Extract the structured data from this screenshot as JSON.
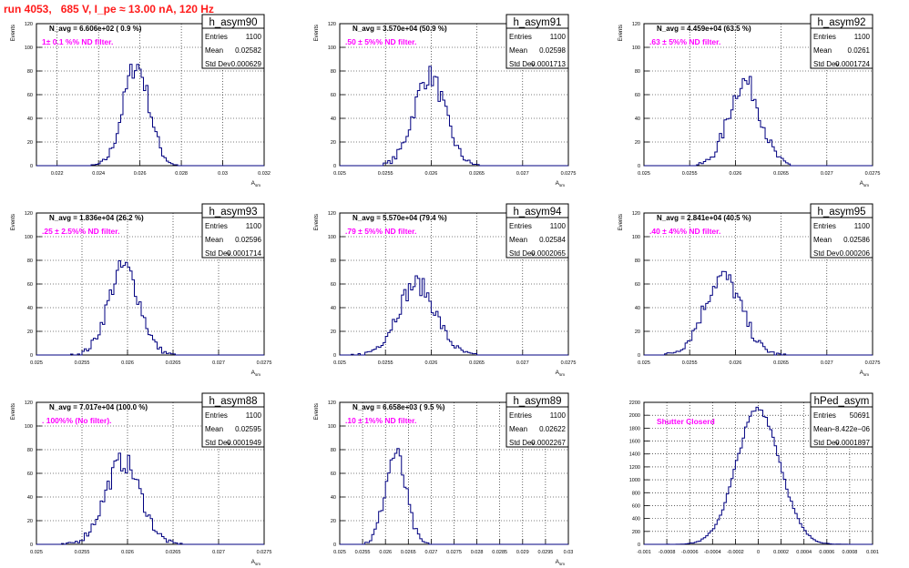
{
  "run_title": "run 4053,   685 V, I_pe ≈ 13.00 nA, 120 Hz",
  "colors": {
    "hist": "#000080",
    "stats": "#000000",
    "grid": "#000000",
    "note": "#ff00ff",
    "title": "#ff1a1a"
  },
  "chart_data": [
    {
      "type": "bar",
      "name": "h_asym90",
      "navg": "N_avg = 6.606e+02 ( 0.9 %)",
      "note": "1± 0.1 %% ND filter.",
      "stats": {
        "Entries": "1100",
        "Mean": "0.02582",
        "Std Dev": "0.000629"
      },
      "xlabel": "A_sm",
      "ylabel": "Events",
      "xlim": [
        0.021,
        0.032
      ],
      "ylim": [
        0,
        120
      ],
      "xticks": [
        "0.022",
        "0.024",
        "0.026",
        "0.028",
        "0.03",
        "0.032"
      ],
      "xtick_values": [
        0.022,
        0.024,
        0.026,
        0.028,
        0.03,
        0.032
      ],
      "yticks": [
        0,
        20,
        40,
        60,
        80,
        100,
        120
      ],
      "grid": true,
      "shape": {
        "mean": 0.02582,
        "sd": 0.000629,
        "peak": 85
      }
    },
    {
      "type": "bar",
      "name": "h_asym91",
      "navg": "N_avg = 3.570e+04 (50.9 %)",
      "note": ".50 ± 5%% ND filter.",
      "stats": {
        "Entries": "1100",
        "Mean": "0.02598",
        "Std Dev": "0.0001713"
      },
      "xlabel": "A_sm",
      "ylabel": "Events",
      "xlim": [
        0.025,
        0.0275
      ],
      "ylim": [
        0,
        120
      ],
      "xticks": [
        "0.025",
        "0.0255",
        "0.026",
        "0.0265",
        "0.027",
        "0.0275"
      ],
      "xtick_values": [
        0.025,
        0.0255,
        0.026,
        0.0265,
        0.027,
        0.0275
      ],
      "yticks": [
        0,
        20,
        40,
        60,
        80,
        100,
        120
      ],
      "grid": true,
      "shape": {
        "mean": 0.02598,
        "sd": 0.0001713,
        "peak": 76
      }
    },
    {
      "type": "bar",
      "name": "h_asym92",
      "navg": "N_avg = 4.459e+04 (63.5 %)",
      "note": ".63 ± 5%% ND filter.",
      "stats": {
        "Entries": "1100",
        "Mean": "0.0261",
        "Std Dev": "0.0001724"
      },
      "xlabel": "A_sm",
      "ylabel": "Events",
      "xlim": [
        0.025,
        0.0275
      ],
      "ylim": [
        0,
        120
      ],
      "xticks": [
        "0.025",
        "0.0255",
        "0.026",
        "0.0265",
        "0.027",
        "0.0275"
      ],
      "xtick_values": [
        0.025,
        0.0255,
        0.026,
        0.0265,
        0.027,
        0.0275
      ],
      "yticks": [
        0,
        20,
        40,
        60,
        80,
        100,
        120
      ],
      "grid": true,
      "shape": {
        "mean": 0.0261,
        "sd": 0.0001724,
        "peak": 71
      }
    },
    {
      "type": "bar",
      "name": "h_asym93",
      "navg": "N_avg = 1.836e+04 (26.2 %)",
      "note": ".25 ± 2.5%% ND filter.",
      "stats": {
        "Entries": "1100",
        "Mean": "0.02596",
        "Std Dev": "0.0001714"
      },
      "xlabel": "A_sm",
      "ylabel": "Events",
      "xlim": [
        0.025,
        0.0275
      ],
      "ylim": [
        0,
        120
      ],
      "xticks": [
        "0.025",
        "0.0255",
        "0.026",
        "0.0265",
        "0.027",
        "0.0275"
      ],
      "xtick_values": [
        0.025,
        0.0255,
        0.026,
        0.0265,
        0.027,
        0.0275
      ],
      "yticks": [
        0,
        20,
        40,
        60,
        80,
        100,
        120
      ],
      "grid": true,
      "shape": {
        "mean": 0.02596,
        "sd": 0.0001714,
        "peak": 74
      }
    },
    {
      "type": "bar",
      "name": "h_asym94",
      "navg": "N_avg = 5.570e+04 (79.4 %)",
      "note": ".79 ± 5%% ND filter.",
      "stats": {
        "Entries": "1100",
        "Mean": "0.02584",
        "Std Dev": "0.0002065"
      },
      "xlabel": "A_sm",
      "ylabel": "Events",
      "xlim": [
        0.025,
        0.0275
      ],
      "ylim": [
        0,
        120
      ],
      "xticks": [
        "0.025",
        "0.0255",
        "0.026",
        "0.0265",
        "0.027",
        "0.0275"
      ],
      "xtick_values": [
        0.025,
        0.0255,
        0.026,
        0.0265,
        0.027,
        0.0275
      ],
      "yticks": [
        0,
        20,
        40,
        60,
        80,
        100,
        120
      ],
      "grid": true,
      "shape": {
        "mean": 0.02584,
        "sd": 0.0002065,
        "peak": 60
      }
    },
    {
      "type": "bar",
      "name": "h_asym95",
      "navg": "N_avg = 2.841e+04 (40.5 %)",
      "note": ".40 ± 4%% ND filter.",
      "stats": {
        "Entries": "1100",
        "Mean": "0.02586",
        "Std Dev": "0.000206"
      },
      "xlabel": "A_sm",
      "ylabel": "Events",
      "xlim": [
        0.025,
        0.0275
      ],
      "ylim": [
        0,
        120
      ],
      "xticks": [
        "0.025",
        "0.0255",
        "0.026",
        "0.0265",
        "0.027",
        "0.0275"
      ],
      "xtick_values": [
        0.025,
        0.0255,
        0.026,
        0.0265,
        0.027,
        0.0275
      ],
      "yticks": [
        0,
        20,
        40,
        60,
        80,
        100,
        120
      ],
      "grid": true,
      "shape": {
        "mean": 0.02586,
        "sd": 0.000206,
        "peak": 66
      }
    },
    {
      "type": "bar",
      "name": "h_asym88",
      "navg": "N_avg = 7.017e+04 (100.0 %)",
      "note": ". 100%% (No filter).",
      "stats": {
        "Entries": "1100",
        "Mean": "0.02595",
        "Std Dev": "0.0001949"
      },
      "xlabel": "A_sm",
      "ylabel": "Events",
      "xlim": [
        0.025,
        0.0275
      ],
      "ylim": [
        0,
        120
      ],
      "xticks": [
        "0.025",
        "0.0255",
        "0.026",
        "0.0265",
        "0.027",
        "0.0275"
      ],
      "xtick_values": [
        0.025,
        0.0255,
        0.026,
        0.0265,
        0.027,
        0.0275
      ],
      "yticks": [
        0,
        20,
        40,
        60,
        80,
        100,
        120
      ],
      "grid": true,
      "shape": {
        "mean": 0.02595,
        "sd": 0.0001949,
        "peak": 70
      }
    },
    {
      "type": "bar",
      "name": "h_asym89",
      "navg": "N_avg = 6.658e+03 ( 9.5 %)",
      "note": ".10 ± 1%% ND filter.",
      "stats": {
        "Entries": "1100",
        "Mean": "0.02622",
        "Std Dev": "0.0002267"
      },
      "xlabel": "A_sm",
      "ylabel": "Events",
      "xlim": [
        0.025,
        0.03
      ],
      "ylim": [
        0,
        120
      ],
      "xticks": [
        "0.025",
        "0.0255",
        "0.026",
        "0.0265",
        "0.027",
        "0.0275",
        "0.028",
        "0.0285",
        "0.029",
        "0.0295",
        "0.03"
      ],
      "xtick_values": [
        0.025,
        0.0255,
        0.026,
        0.0265,
        0.027,
        0.0275,
        0.028,
        0.0285,
        0.029,
        0.0295,
        0.03
      ],
      "yticks": [
        0,
        20,
        40,
        60,
        80,
        100,
        120
      ],
      "grid": true,
      "shape": {
        "mean": 0.02622,
        "sd": 0.0002267,
        "peak": 76
      }
    },
    {
      "type": "bar",
      "name": "hPed_asym",
      "navg": "",
      "note": "Shutter Closerd",
      "stats": {
        "Entries": "50691",
        "Mean": "−8.422e−06",
        "Std Dev": "0.0001897"
      },
      "xlabel": "",
      "ylabel": "",
      "xlim": [
        -0.001,
        0.001
      ],
      "ylim": [
        0,
        2200
      ],
      "xticks": [
        "-0.001",
        "-0.0008",
        "-0.0006",
        "-0.0004",
        "-0.0002",
        "0",
        "0.0002",
        "0.0004",
        "0.0006",
        "0.0008",
        "0.001"
      ],
      "xtick_values": [
        -0.001,
        -0.0008,
        -0.0006,
        -0.0004,
        -0.0002,
        0,
        0.0002,
        0.0004,
        0.0006,
        0.0008,
        0.001
      ],
      "yticks": [
        0,
        200,
        400,
        600,
        800,
        1000,
        1200,
        1400,
        1600,
        1800,
        2000,
        2200
      ],
      "grid": true,
      "shape": {
        "mean": 0,
        "sd": 0.0001897,
        "peak": 2100
      }
    }
  ]
}
